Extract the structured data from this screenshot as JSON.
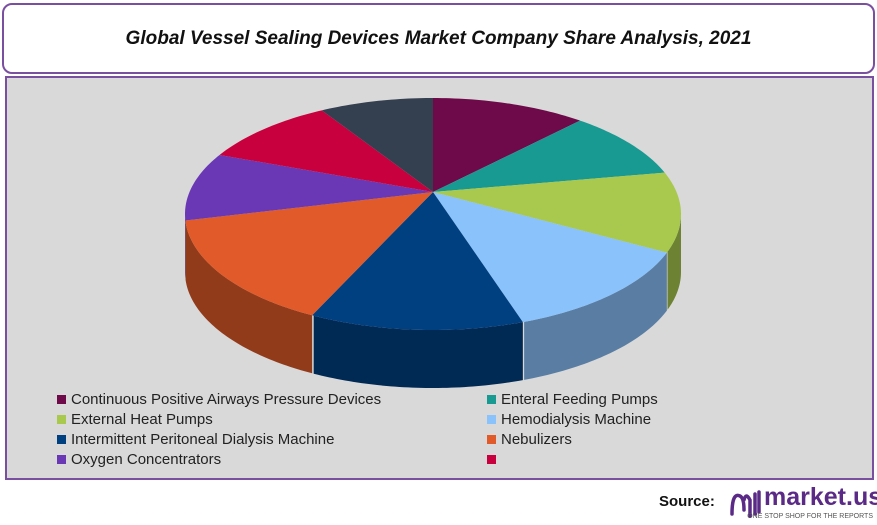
{
  "chart_data": {
    "type": "pie",
    "title": "Global Vessel Sealing Devices Market Company Share Analysis, 2021",
    "style": "3d",
    "legend_position": "bottom",
    "slices": [
      {
        "label": "Continuous Positive Airways Pressure Devices",
        "value": 10.1,
        "color": "#6e0a4a"
      },
      {
        "label": "Enteral Feeding Pumps",
        "value": 9.1,
        "color": "#189a92"
      },
      {
        "label": "External Heat Pumps",
        "value": 11.2,
        "color": "#a8c94e"
      },
      {
        "label": "Hemodialysis Machine",
        "value": 13.7,
        "color": "#8ac2fb"
      },
      {
        "label": "Intermittent Peritoneal Dialysis Machine",
        "value": 14.0,
        "color": "#003f80"
      },
      {
        "label": "Nebulizers",
        "value": 16.0,
        "color": "#e05a2a"
      },
      {
        "label": "Oxygen Concentrators",
        "value": 9.4,
        "color": "#6a38b4"
      },
      {
        "label": "",
        "value": 9.1,
        "color": "#c8003e"
      },
      {
        "label": "",
        "value": 7.4,
        "color": "#343f4f"
      }
    ]
  },
  "source_label": "Source:",
  "logo": {
    "name": "market.us",
    "tagline": "ONE STOP SHOP FOR THE REPORTS",
    "color": "#5a2a86"
  }
}
